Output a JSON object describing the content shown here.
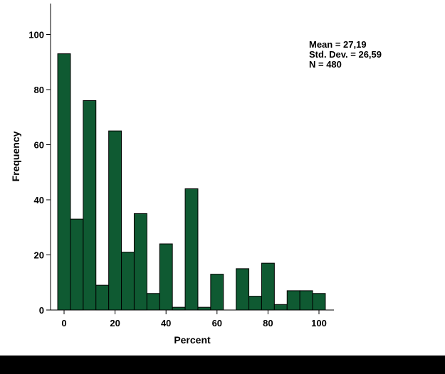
{
  "chart_data": {
    "type": "bar",
    "subtype": "histogram",
    "title": "",
    "xlabel": "Percent",
    "ylabel": "Frequency",
    "xlim": [
      -5,
      105
    ],
    "ylim": [
      0,
      110
    ],
    "xticks": [
      0,
      20,
      40,
      60,
      80,
      100
    ],
    "yticks": [
      0,
      20,
      40,
      60,
      80,
      100
    ],
    "bin_width": 5,
    "bins": [
      {
        "start": -2.5,
        "value": 93
      },
      {
        "start": 2.5,
        "value": 33
      },
      {
        "start": 7.5,
        "value": 76
      },
      {
        "start": 12.5,
        "value": 9
      },
      {
        "start": 17.5,
        "value": 65
      },
      {
        "start": 22.5,
        "value": 21
      },
      {
        "start": 27.5,
        "value": 35
      },
      {
        "start": 32.5,
        "value": 6
      },
      {
        "start": 37.5,
        "value": 24
      },
      {
        "start": 42.5,
        "value": 1
      },
      {
        "start": 47.5,
        "value": 44
      },
      {
        "start": 52.5,
        "value": 1
      },
      {
        "start": 57.5,
        "value": 13
      },
      {
        "start": 62.5,
        "value": 0
      },
      {
        "start": 67.5,
        "value": 15
      },
      {
        "start": 72.5,
        "value": 5
      },
      {
        "start": 77.5,
        "value": 17
      },
      {
        "start": 82.5,
        "value": 2
      },
      {
        "start": 87.5,
        "value": 7
      },
      {
        "start": 92.5,
        "value": 7
      },
      {
        "start": 97.5,
        "value": 6
      }
    ],
    "legend_position": "top-right",
    "stats": [
      "Mean = 27,19",
      "Std. Dev. = 26,59",
      "N = 480"
    ],
    "colors": {
      "bar_fill": "#0f5a32",
      "bar_stroke": "#000000",
      "axis": "#000000",
      "background": "#ffffff"
    }
  }
}
